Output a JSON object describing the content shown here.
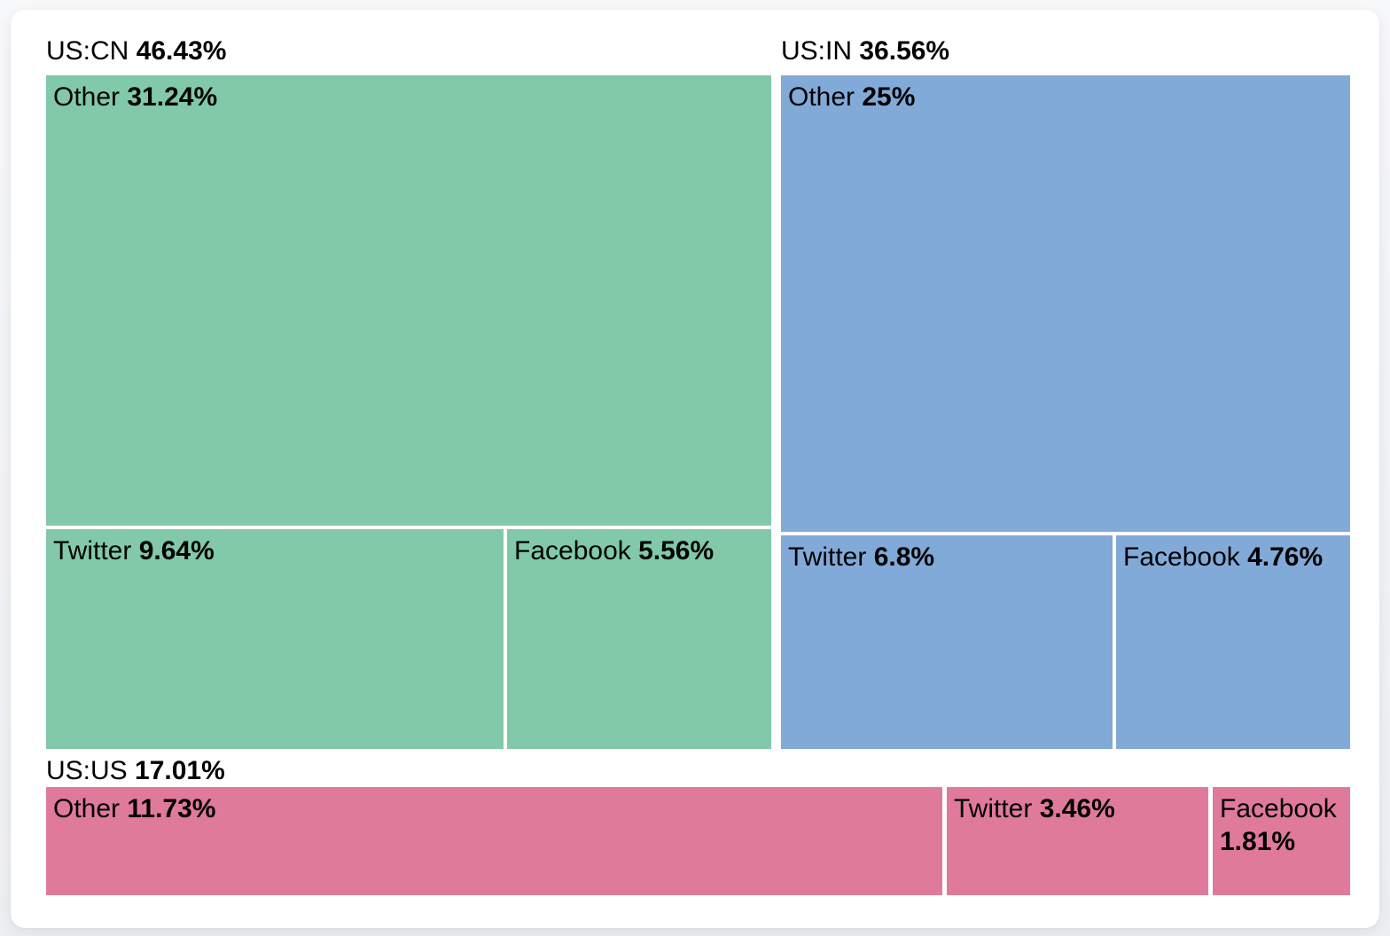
{
  "page": {
    "background_color": "#f1f2f5",
    "card_color": "#ffffff",
    "text_color": "#000000"
  },
  "chart_data": {
    "type": "treemap",
    "title": "",
    "unit": "%",
    "legend": "none",
    "layout": "three groups: US:CN top-left, US:IN top-right, US:US bottom strip; each group split into Other / Twitter / Facebook cells sized by value",
    "groups": [
      {
        "label": "US:CN",
        "value": "46.43%",
        "value_num": 46.43,
        "color": "#81c9a8",
        "children": [
          {
            "label": "Other",
            "value": "31.24%",
            "value_num": 31.24
          },
          {
            "label": "Twitter",
            "value": "9.64%",
            "value_num": 9.64
          },
          {
            "label": "Facebook",
            "value": "5.56%",
            "value_num": 5.56
          }
        ]
      },
      {
        "label": "US:IN",
        "value": "36.56%",
        "value_num": 36.56,
        "color": "#82aad8",
        "children": [
          {
            "label": "Other",
            "value": "25%",
            "value_num": 25.0
          },
          {
            "label": "Twitter",
            "value": "6.8%",
            "value_num": 6.8
          },
          {
            "label": "Facebook",
            "value": "4.76%",
            "value_num": 4.76
          }
        ]
      },
      {
        "label": "US:US",
        "value": "17.01%",
        "value_num": 17.01,
        "color": "#e07a9b",
        "children": [
          {
            "label": "Other",
            "value": "11.73%",
            "value_num": 11.73
          },
          {
            "label": "Twitter",
            "value": "3.46%",
            "value_num": 3.46
          },
          {
            "label": "Facebook",
            "value": "1.81%",
            "value_num": 1.81
          }
        ]
      }
    ]
  }
}
